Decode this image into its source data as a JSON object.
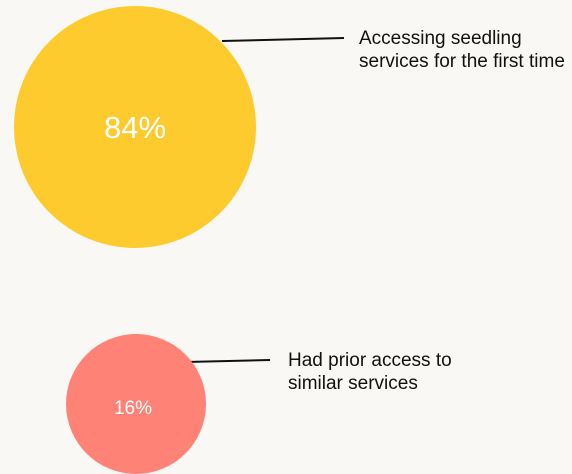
{
  "chart_data": {
    "type": "bubble",
    "title": "",
    "series": [
      {
        "label": "Accessing seedling services for the first time",
        "value": 84,
        "value_label": "84%",
        "color": "#fecb2f"
      },
      {
        "label": "Had prior access to similar services",
        "value": 16,
        "value_label": "16%",
        "color": "#ff8277"
      }
    ]
  },
  "colors": {
    "background": "#f9f8f4",
    "leader_line": "#111111"
  }
}
